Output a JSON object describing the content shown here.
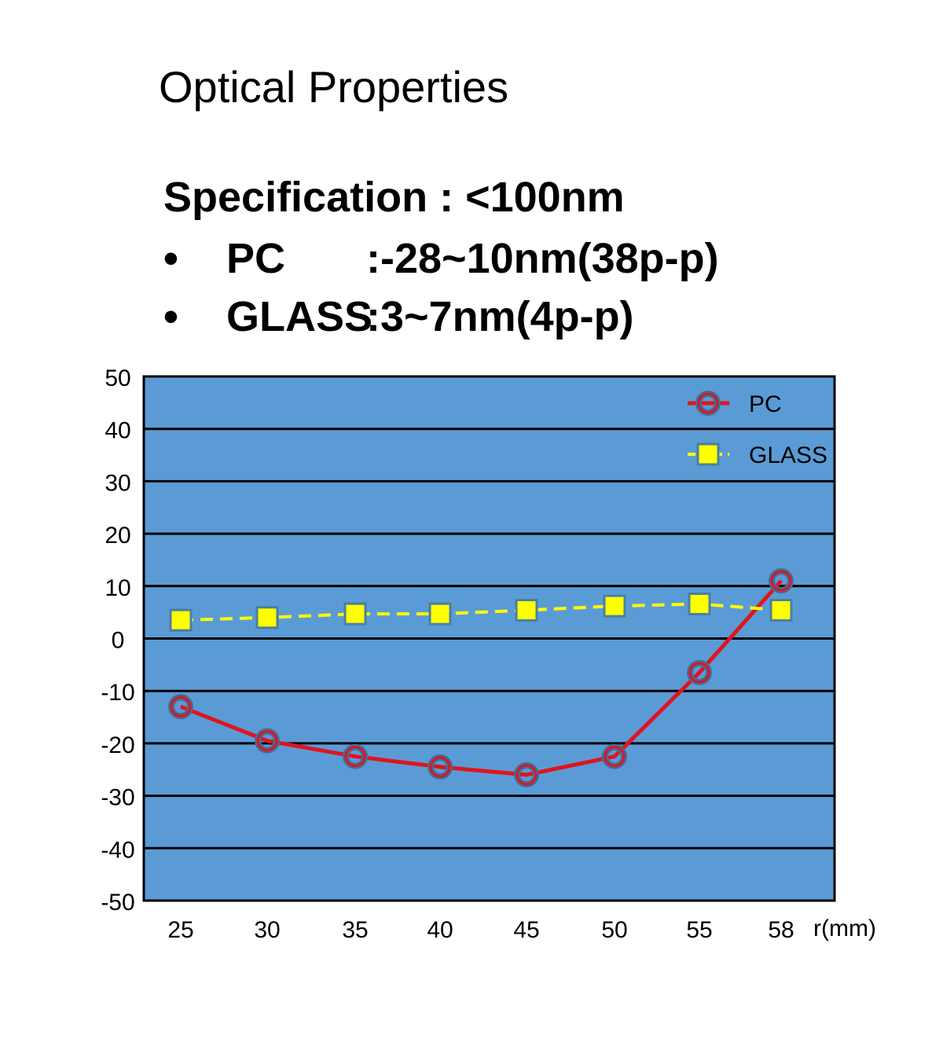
{
  "heading": "Optical Properties",
  "specification": "Specification : <100nm",
  "bullets": [
    {
      "marker": "•",
      "name": "PC",
      "value": ":-28~10nm(38p-p)"
    },
    {
      "marker": "•",
      "name": "GLASS",
      "value": ":3~7nm(4p-p)"
    }
  ],
  "chart_data": {
    "type": "line",
    "categories": [
      "25",
      "30",
      "35",
      "40",
      "45",
      "50",
      "55",
      "58"
    ],
    "x_unit_label": "r(mm)",
    "ylim": [
      -50,
      50
    ],
    "y_ticks": [
      "50",
      "40",
      "30",
      "20",
      "10",
      "0",
      "-10",
      "-20",
      "-30",
      "-40",
      "-50"
    ],
    "grid": true,
    "legend_position": "top-right",
    "series": [
      {
        "name": "PC",
        "values": [
          -13,
          -19.5,
          -22.5,
          -24.5,
          -26,
          -22.5,
          -6.5,
          11
        ],
        "color": "#e0141e",
        "marker": "circle"
      },
      {
        "name": "GLASS",
        "values": [
          3.5,
          4,
          4.7,
          4.7,
          5.4,
          6.2,
          6.6,
          5.4
        ],
        "color": "#ffff00",
        "marker": "square"
      }
    ],
    "plot_background": "#5b9bd5"
  }
}
